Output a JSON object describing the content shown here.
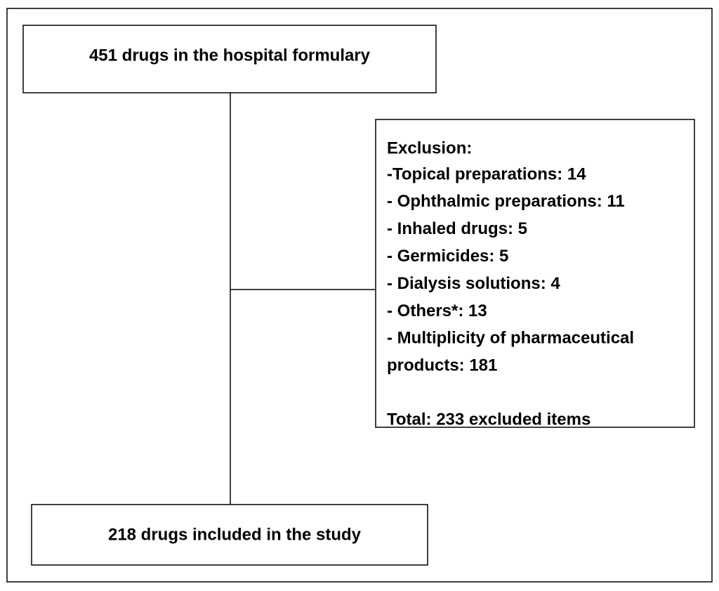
{
  "nodes": [
    {
      "label": "451 drugs in the hospital formulary"
    },
    {
      "label": "218 drugs included in the study"
    }
  ],
  "exclusion": {
    "title": "Exclusion:",
    "items": [
      "-Topical preparations: 14",
      "- Ophthalmic preparations: 11",
      "- Inhaled drugs: 5",
      "- Germicides: 5",
      "- Dialysis solutions: 4",
      "- Others*: 13",
      "- Multiplicity of pharmaceutical",
      "products: 181"
    ],
    "total": "Total: 233 excluded items"
  }
}
